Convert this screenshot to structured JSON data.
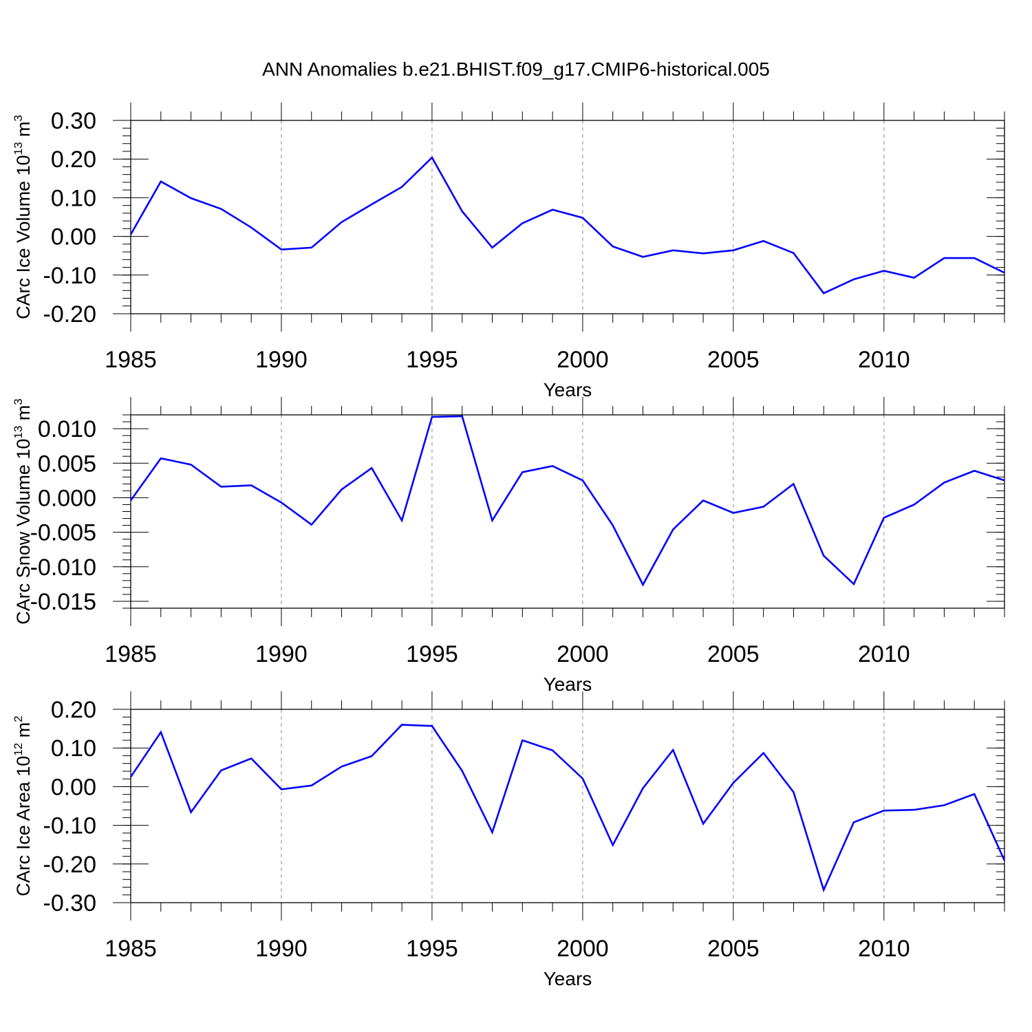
{
  "figure": {
    "title": "ANN Anomalies b.e21.BHIST.f09_g17.CMIP6-historical.005",
    "line_color": "#0000ff",
    "grid_color": "#888888"
  },
  "chart_data": [
    {
      "type": "line",
      "id": "ice-volume",
      "ylabel": "CArc Ice Volume 10",
      "ylabel_exp": "13",
      "ylabel_unit": " m",
      "ylabel_unit_exp": "3",
      "xlabel": "Years",
      "xlim": [
        1985,
        2014
      ],
      "ylim": [
        -0.2,
        0.3
      ],
      "yticks": [
        -0.2,
        -0.1,
        0.0,
        0.1,
        0.2,
        0.3
      ],
      "ytick_labels": [
        "-0.20",
        "-0.10",
        "0.00",
        "0.10",
        "0.20",
        "0.30"
      ],
      "yminor_step": 0.02,
      "xticks": [
        1985,
        1990,
        1995,
        2000,
        2005,
        2010
      ],
      "xtick_labels": [
        "1985",
        "1990",
        "1995",
        "2000",
        "2005",
        "2010"
      ],
      "grid_x": [
        1990,
        1995,
        2000,
        2005,
        2010
      ],
      "x": [
        1985,
        1986,
        1987,
        1988,
        1989,
        1990,
        1991,
        1992,
        1993,
        1994,
        1995,
        1996,
        1997,
        1998,
        1999,
        2000,
        2001,
        2002,
        2003,
        2004,
        2005,
        2006,
        2007,
        2008,
        2009,
        2010,
        2011,
        2012,
        2013,
        2014
      ],
      "values": [
        0.005,
        0.142,
        0.099,
        0.071,
        0.023,
        -0.034,
        -0.029,
        0.037,
        0.083,
        0.128,
        0.204,
        0.065,
        -0.029,
        0.034,
        0.069,
        0.048,
        -0.026,
        -0.053,
        -0.036,
        -0.044,
        -0.036,
        -0.012,
        -0.043,
        -0.147,
        -0.111,
        -0.089,
        -0.107,
        -0.056,
        -0.056,
        -0.094
      ]
    },
    {
      "type": "line",
      "id": "snow-volume",
      "ylabel": "CArc Snow Volume 10",
      "ylabel_exp": "13",
      "ylabel_unit": " m",
      "ylabel_unit_exp": "3",
      "xlabel": "Years",
      "xlim": [
        1985,
        2014
      ],
      "ylim": [
        -0.016,
        0.012
      ],
      "yticks": [
        -0.015,
        -0.01,
        -0.005,
        0.0,
        0.005,
        0.01
      ],
      "ytick_labels": [
        "-0.015",
        "-0.010",
        "-0.005",
        "0.000",
        "0.005",
        "0.010"
      ],
      "yminor_step": 0.001,
      "xticks": [
        1985,
        1990,
        1995,
        2000,
        2005,
        2010
      ],
      "xtick_labels": [
        "1985",
        "1990",
        "1995",
        "2000",
        "2005",
        "2010"
      ],
      "grid_x": [
        1990,
        1995,
        2000,
        2005,
        2010
      ],
      "x": [
        1985,
        1986,
        1987,
        1988,
        1989,
        1990,
        1991,
        1992,
        1993,
        1994,
        1995,
        1996,
        1997,
        1998,
        1999,
        2000,
        2001,
        2002,
        2003,
        2004,
        2005,
        2006,
        2007,
        2008,
        2009,
        2010,
        2011,
        2012,
        2013,
        2014
      ],
      "values": [
        -0.0004,
        0.0057,
        0.0048,
        0.0016,
        0.0018,
        -0.0007,
        -0.0039,
        0.0012,
        0.0043,
        -0.0033,
        0.0117,
        0.0118,
        -0.0033,
        0.0037,
        0.0046,
        0.0025,
        -0.004,
        -0.0126,
        -0.0046,
        -0.0004,
        -0.0022,
        -0.0013,
        0.002,
        -0.0084,
        -0.0125,
        -0.0029,
        -0.001,
        0.0022,
        0.0039,
        0.0025
      ]
    },
    {
      "type": "line",
      "id": "ice-area",
      "ylabel": "CArc Ice Area 10",
      "ylabel_exp": "12",
      "ylabel_unit": " m",
      "ylabel_unit_exp": "2",
      "xlabel": "Years",
      "xlim": [
        1985,
        2014
      ],
      "ylim": [
        -0.3,
        0.2
      ],
      "yticks": [
        -0.3,
        -0.2,
        -0.1,
        0.0,
        0.1,
        0.2
      ],
      "ytick_labels": [
        "-0.30",
        "-0.20",
        "-0.10",
        "0.00",
        "0.10",
        "0.20"
      ],
      "yminor_step": 0.02,
      "xticks": [
        1985,
        1990,
        1995,
        2000,
        2005,
        2010
      ],
      "xtick_labels": [
        "1985",
        "1990",
        "1995",
        "2000",
        "2005",
        "2010"
      ],
      "grid_x": [
        1990,
        1995,
        2000,
        2005,
        2010
      ],
      "x": [
        1985,
        1986,
        1987,
        1988,
        1989,
        1990,
        1991,
        1992,
        1993,
        1994,
        1995,
        1996,
        1997,
        1998,
        1999,
        2000,
        2001,
        2002,
        2003,
        2004,
        2005,
        2006,
        2007,
        2008,
        2009,
        2010,
        2011,
        2012,
        2013,
        2014
      ],
      "values": [
        0.025,
        0.141,
        -0.066,
        0.042,
        0.073,
        -0.007,
        0.003,
        0.052,
        0.079,
        0.16,
        0.157,
        0.041,
        -0.118,
        0.12,
        0.094,
        0.021,
        -0.151,
        -0.004,
        0.095,
        -0.096,
        0.01,
        0.087,
        -0.014,
        -0.267,
        -0.092,
        -0.062,
        -0.06,
        -0.048,
        -0.019,
        -0.191
      ]
    }
  ]
}
